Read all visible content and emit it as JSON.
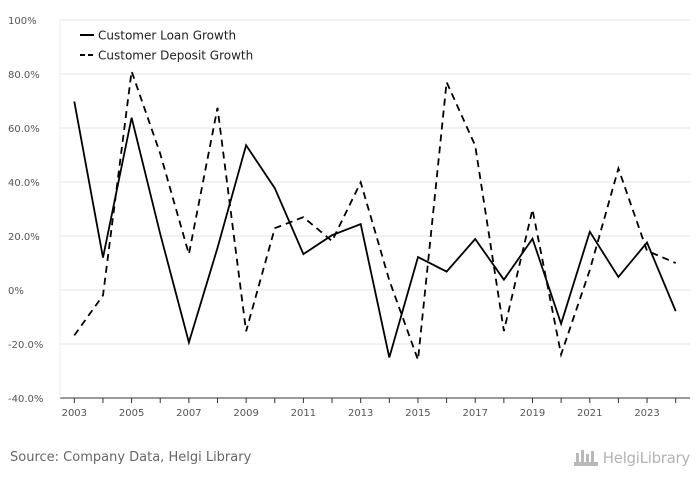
{
  "chart_data": {
    "type": "line",
    "x": [
      2003,
      2004,
      2005,
      2006,
      2007,
      2008,
      2009,
      2010,
      2011,
      2012,
      2013,
      2014,
      2015,
      2016,
      2017,
      2018,
      2019,
      2020,
      2021,
      2022,
      2023,
      2024
    ],
    "series": [
      {
        "name": "Customer Loan Growth",
        "style": "solid",
        "color": "#000000",
        "values": [
          69.8,
          12.0,
          63.8,
          20.8,
          -19.4,
          15.6,
          53.6,
          37.7,
          13.3,
          20.3,
          24.4,
          -25.0,
          12.2,
          6.8,
          18.9,
          3.8,
          19.0,
          -12.5,
          21.6,
          4.8,
          17.6,
          -7.8
        ]
      },
      {
        "name": "Customer Deposit Growth",
        "style": "dashed",
        "color": "#000000",
        "values": [
          -16.8,
          -2.0,
          81.0,
          50.5,
          13.3,
          67.5,
          -15.3,
          22.9,
          27.0,
          18.1,
          39.9,
          3.6,
          -25.9,
          77.0,
          53.5,
          -15.2,
          29.8,
          -23.9,
          7.4,
          45.0,
          14.5,
          10.0
        ]
      }
    ],
    "ylim": [
      -40,
      100
    ],
    "yticks": [
      -40,
      -20,
      0,
      20,
      40,
      60,
      80,
      100
    ],
    "ytick_labels": [
      "-40.0%",
      "-20.0%",
      "0%",
      "20.0%",
      "40.0%",
      "60.0%",
      "80.0%",
      "100%"
    ],
    "xticks": [
      2003,
      2005,
      2007,
      2009,
      2011,
      2013,
      2015,
      2017,
      2019,
      2021,
      2023
    ],
    "xtick_labels": [
      "2003",
      "2005",
      "2007",
      "2009",
      "2011",
      "2013",
      "2015",
      "2017",
      "2019",
      "2021",
      "2023"
    ],
    "grid": "horizontal",
    "legend_position": "top-left",
    "title": "",
    "xlabel": "",
    "ylabel": ""
  },
  "footer": {
    "source": "Source: Company Data, Helgi Library",
    "brand": "HelgiLibrary"
  },
  "colors": {
    "gridline": "#e3e3e3",
    "axis": "#333333",
    "tick_text": "#555555"
  }
}
